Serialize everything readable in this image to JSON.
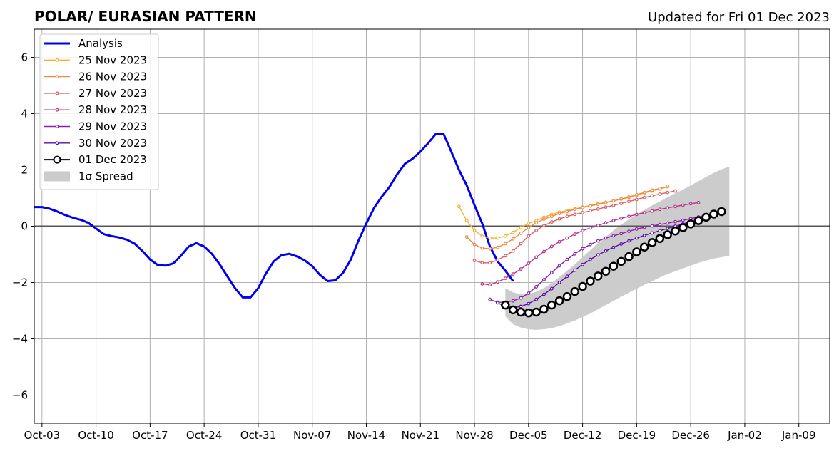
{
  "chart_data": {
    "type": "line",
    "title": "POLAR/ EURASIAN  PATTERN",
    "subtitle": "Updated for Fri 01 Dec 2023",
    "xlabel": "",
    "ylabel": "",
    "ylim": [
      -7,
      7
    ],
    "xlim": [
      "2023-10-02",
      "2024-01-13"
    ],
    "y_ticks": [
      6,
      4,
      2,
      0,
      -2,
      -4,
      -6
    ],
    "y_tick_labels": [
      "6",
      "4",
      "2",
      "0",
      "−2",
      "−4",
      "−6"
    ],
    "x_ticks": [
      "2023-10-03",
      "2023-10-10",
      "2023-10-17",
      "2023-10-24",
      "2023-10-31",
      "2023-11-07",
      "2023-11-14",
      "2023-11-21",
      "2023-11-28",
      "2023-12-05",
      "2023-12-12",
      "2023-12-19",
      "2023-12-26",
      "2024-01-02",
      "2024-01-09"
    ],
    "x_tick_labels": [
      "Oct-03",
      "Oct-10",
      "Oct-17",
      "Oct-24",
      "Oct-31",
      "Nov-07",
      "Nov-14",
      "Nov-21",
      "Nov-28",
      "Dec-05",
      "Dec-12",
      "Dec-19",
      "Dec-26",
      "Jan-02",
      "Jan-09"
    ],
    "grid": true,
    "legend_position": "top-left",
    "analysis": {
      "name": "Analysis",
      "color": "#0000ee",
      "start": "2023-10-02",
      "values": [
        0.68,
        0.68,
        0.62,
        0.52,
        0.4,
        0.3,
        0.23,
        0.12,
        -0.08,
        -0.28,
        -0.35,
        -0.4,
        -0.48,
        -0.62,
        -0.88,
        -1.18,
        -1.38,
        -1.4,
        -1.32,
        -1.05,
        -0.72,
        -0.6,
        -0.72,
        -0.98,
        -1.35,
        -1.78,
        -2.2,
        -2.53,
        -2.53,
        -2.2,
        -1.68,
        -1.25,
        -1.03,
        -0.98,
        -1.07,
        -1.21,
        -1.42,
        -1.73,
        -1.95,
        -1.92,
        -1.65,
        -1.18,
        -0.5,
        0.1,
        0.65,
        1.05,
        1.4,
        1.85,
        2.22,
        2.4,
        2.65,
        2.95,
        3.28,
        3.28,
        2.65,
        2.0,
        1.45,
        0.75,
        0.1,
        -0.72,
        -1.25,
        -1.58,
        -1.95
      ]
    },
    "series": [
      {
        "name": "25 Nov 2023",
        "color": "#f5b133",
        "start": "2023-11-26",
        "values": [
          0.7,
          0.2,
          -0.15,
          -0.35,
          -0.42,
          -0.42,
          -0.35,
          -0.22,
          -0.05,
          0.1,
          0.2,
          0.32,
          0.42,
          0.5,
          0.56,
          0.62,
          0.68,
          0.74,
          0.8,
          0.85,
          0.9,
          0.96,
          1.02,
          1.1,
          1.18,
          1.25,
          1.32,
          1.4
        ]
      },
      {
        "name": "26 Nov 2023",
        "color": "#ef8a46",
        "start": "2023-11-27",
        "values": [
          -0.38,
          -0.65,
          -0.78,
          -0.8,
          -0.75,
          -0.62,
          -0.45,
          -0.25,
          -0.05,
          0.12,
          0.25,
          0.35,
          0.45,
          0.52,
          0.6,
          0.66,
          0.72,
          0.78,
          0.84,
          0.9,
          0.97,
          1.04,
          1.12,
          1.2,
          1.28,
          1.34,
          1.42
        ]
      },
      {
        "name": "27 Nov 2023",
        "color": "#dc5d64",
        "start": "2023-11-28",
        "values": [
          -1.22,
          -1.3,
          -1.3,
          -1.2,
          -1.05,
          -0.88,
          -0.62,
          -0.35,
          -0.15,
          0.02,
          0.15,
          0.26,
          0.35,
          0.42,
          0.48,
          0.55,
          0.61,
          0.68,
          0.74,
          0.81,
          0.88,
          0.95,
          1.02,
          1.08,
          1.14,
          1.2,
          1.25
        ]
      },
      {
        "name": "28 Nov 2023",
        "color": "#b83687",
        "start": "2023-11-29",
        "values": [
          -2.05,
          -2.08,
          -1.98,
          -1.85,
          -1.7,
          -1.52,
          -1.32,
          -1.1,
          -0.9,
          -0.72,
          -0.55,
          -0.42,
          -0.28,
          -0.16,
          -0.06,
          0.03,
          0.12,
          0.2,
          0.28,
          0.35,
          0.42,
          0.48,
          0.54,
          0.6,
          0.65,
          0.7,
          0.75,
          0.8,
          0.84
        ]
      },
      {
        "name": "29 Nov 2023",
        "color": "#8b1fa8",
        "start": "2023-11-30",
        "values": [
          -2.6,
          -2.7,
          -2.7,
          -2.65,
          -2.55,
          -2.38,
          -2.15,
          -1.9,
          -1.65,
          -1.4,
          -1.18,
          -0.98,
          -0.8,
          -0.65,
          -0.52,
          -0.42,
          -0.34,
          -0.26,
          -0.18,
          -0.1,
          -0.04,
          0.01,
          0.06,
          0.11,
          0.16,
          0.21,
          0.27,
          0.33,
          0.4
        ]
      },
      {
        "name": "30 Nov 2023",
        "color": "#5a0ba8",
        "start": "2023-12-01",
        "values": [
          -2.72,
          -2.85,
          -2.9,
          -2.85,
          -2.75,
          -2.6,
          -2.42,
          -2.22,
          -2.0,
          -1.78,
          -1.56,
          -1.36,
          -1.18,
          -1.02,
          -0.88,
          -0.75,
          -0.63,
          -0.52,
          -0.42,
          -0.33,
          -0.24,
          -0.16,
          -0.08,
          0.0,
          0.08,
          0.16,
          0.24,
          0.31,
          0.38
        ]
      },
      {
        "name": "01 Dec 2023",
        "color": "#000000",
        "start": "2023-12-02",
        "values": [
          -2.8,
          -2.97,
          -3.05,
          -3.08,
          -3.05,
          -2.95,
          -2.8,
          -2.65,
          -2.5,
          -2.32,
          -2.14,
          -1.95,
          -1.77,
          -1.6,
          -1.42,
          -1.25,
          -1.08,
          -0.91,
          -0.74,
          -0.58,
          -0.44,
          -0.3,
          -0.17,
          -0.05,
          0.08,
          0.2,
          0.32,
          0.43,
          0.52
        ]
      }
    ],
    "spread": {
      "name": "1σ Spread",
      "color": "#cccccc",
      "start": "2023-12-02",
      "upper": [
        -2.2,
        -2.35,
        -2.42,
        -2.4,
        -2.33,
        -2.2,
        -2.02,
        -1.8,
        -1.58,
        -1.35,
        -1.1,
        -0.85,
        -0.6,
        -0.38,
        -0.15,
        0.05,
        0.25,
        0.42,
        0.58,
        0.74,
        0.88,
        1.03,
        1.17,
        1.3,
        1.45,
        1.6,
        1.75,
        1.9,
        2.02,
        2.12
      ],
      "lower": [
        -3.2,
        -3.48,
        -3.6,
        -3.66,
        -3.68,
        -3.66,
        -3.62,
        -3.55,
        -3.45,
        -3.35,
        -3.22,
        -3.1,
        -2.95,
        -2.8,
        -2.65,
        -2.5,
        -2.36,
        -2.22,
        -2.08,
        -1.95,
        -1.82,
        -1.7,
        -1.6,
        -1.5,
        -1.4,
        -1.3,
        -1.22,
        -1.15,
        -1.1,
        -1.05
      ]
    }
  }
}
